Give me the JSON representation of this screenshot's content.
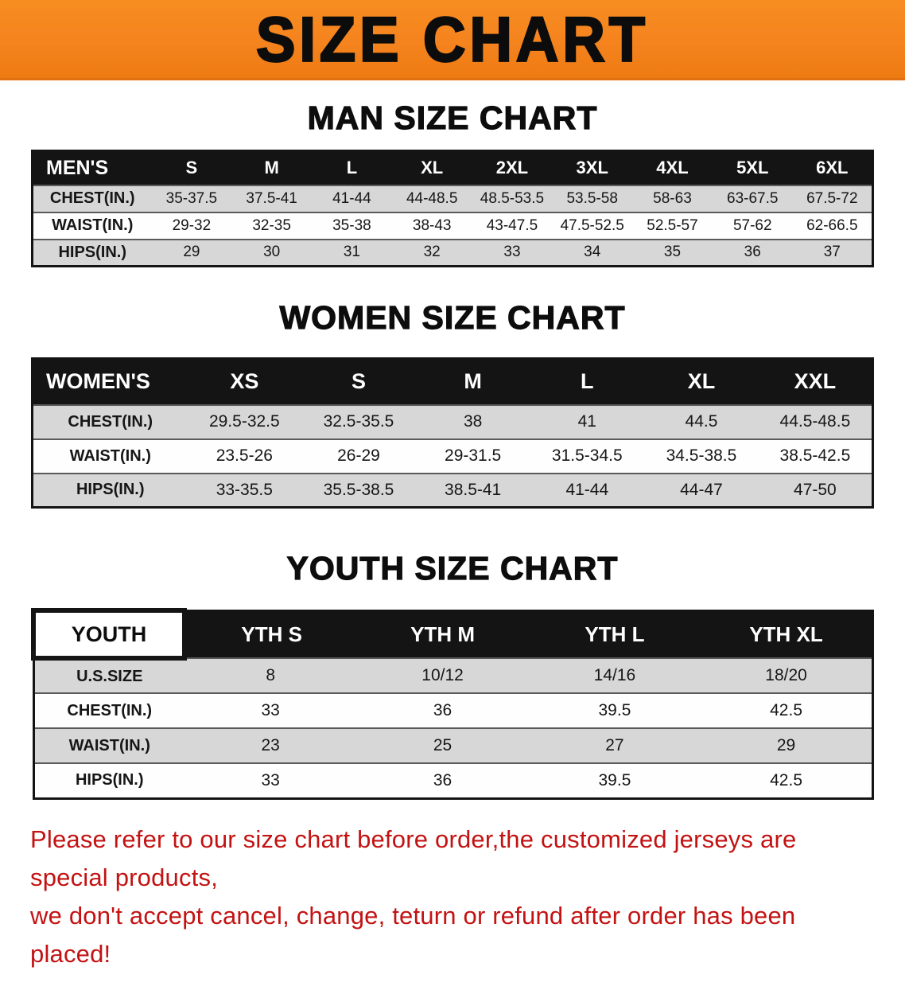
{
  "banner": {
    "title": "SIZE CHART",
    "bg_color": "#F5831E",
    "text_color": "#0C0C0C"
  },
  "sections": [
    {
      "id": "men",
      "heading": "MAN SIZE CHART",
      "table": {
        "header": [
          "MEN'S",
          "S",
          "M",
          "L",
          "XL",
          "2XL",
          "3XL",
          "4XL",
          "5XL",
          "6XL"
        ],
        "rows": [
          [
            "CHEST(IN.)",
            "35-37.5",
            "37.5-41",
            "41-44",
            "44-48.5",
            "48.5-53.5",
            "53.5-58",
            "58-63",
            "63-67.5",
            "67.5-72"
          ],
          [
            "WAIST(IN.)",
            "29-32",
            "32-35",
            "35-38",
            "38-43",
            "43-47.5",
            "47.5-52.5",
            "52.5-57",
            "57-62",
            "62-66.5"
          ],
          [
            "HIPS(IN.)",
            "29",
            "30",
            "31",
            "32",
            "33",
            "34",
            "35",
            "36",
            "37"
          ]
        ]
      }
    },
    {
      "id": "women",
      "heading": "WOMEN SIZE CHART",
      "table": {
        "header": [
          "WOMEN'S",
          "XS",
          "S",
          "M",
          "L",
          "XL",
          "XXL"
        ],
        "rows": [
          [
            "CHEST(IN.)",
            "29.5-32.5",
            "32.5-35.5",
            "38",
            "41",
            "44.5",
            "44.5-48.5"
          ],
          [
            "WAIST(IN.)",
            "23.5-26",
            "26-29",
            "29-31.5",
            "31.5-34.5",
            "34.5-38.5",
            "38.5-42.5"
          ],
          [
            "HIPS(IN.)",
            "33-35.5",
            "35.5-38.5",
            "38.5-41",
            "41-44",
            "44-47",
            "47-50"
          ]
        ]
      }
    },
    {
      "id": "youth",
      "heading": "YOUTH SIZE CHART",
      "table": {
        "header": [
          "YOUTH",
          "YTH S",
          "YTH M",
          "YTH L",
          "YTH XL"
        ],
        "rows": [
          [
            "U.S.SIZE",
            "8",
            "10/12",
            "14/16",
            "18/20"
          ],
          [
            "CHEST(IN.)",
            "33",
            "36",
            "39.5",
            "42.5"
          ],
          [
            "WAIST(IN.)",
            "23",
            "25",
            "27",
            "29"
          ],
          [
            "HIPS(IN.)",
            "33",
            "36",
            "39.5",
            "42.5"
          ]
        ]
      }
    }
  ],
  "colors": {
    "header_bar": "#141414",
    "row_alt": "#D7D7D7",
    "row_base": "#FEFEFE",
    "disclaimer_text": "#C31212"
  },
  "disclaimer": {
    "line1": "Please refer to our size chart before order,the customized jerseys are special products,",
    "line2": "we don't accept cancel, change, teturn or refund after order has been placed!"
  }
}
